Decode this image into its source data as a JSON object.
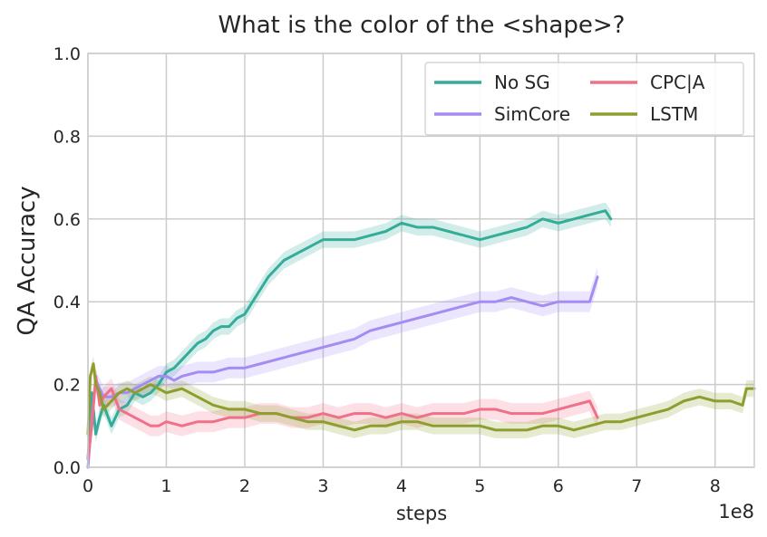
{
  "chart_data": {
    "type": "line",
    "title": "What is the color of the <shape>?",
    "xlabel": "steps",
    "ylabel": "QA Accuracy",
    "x_scale_label": "1e8",
    "xlim": [
      0,
      8.5
    ],
    "ylim": [
      0,
      1.0
    ],
    "xticks": [
      0,
      1,
      2,
      3,
      4,
      5,
      6,
      7,
      8
    ],
    "yticks": [
      0.0,
      0.2,
      0.4,
      0.6,
      0.8,
      1.0
    ],
    "xtick_labels": [
      "0",
      "1",
      "2",
      "3",
      "4",
      "5",
      "6",
      "7",
      "8"
    ],
    "ytick_labels": [
      "0.0",
      "0.2",
      "0.4",
      "0.6",
      "0.8",
      "1.0"
    ],
    "grid": true,
    "legend_position": "top-right",
    "series": [
      {
        "name": "No SG",
        "color": "#34ac9a",
        "band": 0.02,
        "x": [
          0,
          0.05,
          0.1,
          0.15,
          0.2,
          0.3,
          0.4,
          0.5,
          0.6,
          0.7,
          0.8,
          0.9,
          1.0,
          1.1,
          1.2,
          1.3,
          1.4,
          1.5,
          1.6,
          1.7,
          1.8,
          1.9,
          2.0,
          2.1,
          2.2,
          2.3,
          2.4,
          2.5,
          2.6,
          2.7,
          2.8,
          2.9,
          3.0,
          3.2,
          3.4,
          3.6,
          3.8,
          4.0,
          4.2,
          4.4,
          4.6,
          4.8,
          5.0,
          5.2,
          5.4,
          5.6,
          5.8,
          6.0,
          6.2,
          6.4,
          6.6,
          6.67
        ],
        "y": [
          0.02,
          0.18,
          0.08,
          0.12,
          0.15,
          0.1,
          0.14,
          0.15,
          0.18,
          0.17,
          0.18,
          0.2,
          0.23,
          0.24,
          0.26,
          0.28,
          0.3,
          0.31,
          0.33,
          0.34,
          0.34,
          0.36,
          0.37,
          0.4,
          0.43,
          0.46,
          0.48,
          0.5,
          0.51,
          0.52,
          0.53,
          0.54,
          0.55,
          0.55,
          0.55,
          0.56,
          0.57,
          0.59,
          0.58,
          0.58,
          0.57,
          0.56,
          0.55,
          0.56,
          0.57,
          0.58,
          0.6,
          0.59,
          0.6,
          0.61,
          0.62,
          0.6
        ]
      },
      {
        "name": "SimCore",
        "color": "#a48cf4",
        "band": 0.025,
        "x": [
          0,
          0.05,
          0.1,
          0.2,
          0.3,
          0.4,
          0.5,
          0.6,
          0.7,
          0.8,
          0.9,
          1.0,
          1.1,
          1.2,
          1.4,
          1.6,
          1.8,
          2.0,
          2.2,
          2.4,
          2.6,
          2.8,
          3.0,
          3.2,
          3.4,
          3.6,
          3.8,
          4.0,
          4.2,
          4.4,
          4.6,
          4.8,
          5.0,
          5.2,
          5.4,
          5.6,
          5.8,
          6.0,
          6.2,
          6.4,
          6.5
        ],
        "y": [
          0.0,
          0.12,
          0.21,
          0.17,
          0.17,
          0.18,
          0.18,
          0.19,
          0.2,
          0.21,
          0.22,
          0.22,
          0.21,
          0.22,
          0.23,
          0.23,
          0.24,
          0.24,
          0.25,
          0.26,
          0.27,
          0.28,
          0.29,
          0.3,
          0.31,
          0.33,
          0.34,
          0.35,
          0.36,
          0.37,
          0.38,
          0.39,
          0.4,
          0.4,
          0.41,
          0.4,
          0.39,
          0.4,
          0.4,
          0.4,
          0.46
        ]
      },
      {
        "name": "CPC|A",
        "color": "#f0708a",
        "band": 0.025,
        "x": [
          0,
          0.05,
          0.1,
          0.15,
          0.2,
          0.3,
          0.4,
          0.5,
          0.6,
          0.7,
          0.8,
          0.9,
          1.0,
          1.2,
          1.4,
          1.6,
          1.8,
          2.0,
          2.2,
          2.4,
          2.6,
          2.8,
          3.0,
          3.2,
          3.4,
          3.6,
          3.8,
          4.0,
          4.2,
          4.4,
          4.6,
          4.8,
          5.0,
          5.2,
          5.4,
          5.6,
          5.8,
          6.0,
          6.2,
          6.4,
          6.5
        ],
        "y": [
          0.02,
          0.1,
          0.22,
          0.15,
          0.17,
          0.19,
          0.14,
          0.13,
          0.12,
          0.11,
          0.1,
          0.1,
          0.11,
          0.1,
          0.11,
          0.11,
          0.12,
          0.12,
          0.13,
          0.13,
          0.12,
          0.12,
          0.13,
          0.12,
          0.13,
          0.13,
          0.12,
          0.13,
          0.12,
          0.13,
          0.13,
          0.13,
          0.14,
          0.14,
          0.13,
          0.13,
          0.13,
          0.14,
          0.15,
          0.16,
          0.12
        ]
      },
      {
        "name": "LSTM",
        "color": "#8e9e2e",
        "band": 0.02,
        "x": [
          0,
          0.03,
          0.07,
          0.1,
          0.15,
          0.2,
          0.3,
          0.4,
          0.5,
          0.6,
          0.7,
          0.8,
          0.9,
          1.0,
          1.2,
          1.4,
          1.6,
          1.8,
          2.0,
          2.2,
          2.4,
          2.6,
          2.8,
          3.0,
          3.2,
          3.4,
          3.6,
          3.8,
          4.0,
          4.2,
          4.4,
          4.6,
          4.8,
          5.0,
          5.2,
          5.4,
          5.6,
          5.8,
          6.0,
          6.2,
          6.4,
          6.6,
          6.8,
          7.0,
          7.2,
          7.4,
          7.6,
          7.8,
          8.0,
          8.2,
          8.35,
          8.4,
          8.5
        ],
        "y": [
          0.08,
          0.22,
          0.25,
          0.2,
          0.18,
          0.14,
          0.16,
          0.18,
          0.19,
          0.18,
          0.19,
          0.2,
          0.19,
          0.18,
          0.19,
          0.17,
          0.15,
          0.14,
          0.14,
          0.13,
          0.13,
          0.12,
          0.11,
          0.11,
          0.1,
          0.09,
          0.1,
          0.1,
          0.11,
          0.11,
          0.1,
          0.1,
          0.1,
          0.1,
          0.09,
          0.09,
          0.09,
          0.1,
          0.1,
          0.09,
          0.1,
          0.11,
          0.11,
          0.12,
          0.13,
          0.14,
          0.16,
          0.17,
          0.16,
          0.16,
          0.15,
          0.19,
          0.19
        ]
      }
    ]
  }
}
